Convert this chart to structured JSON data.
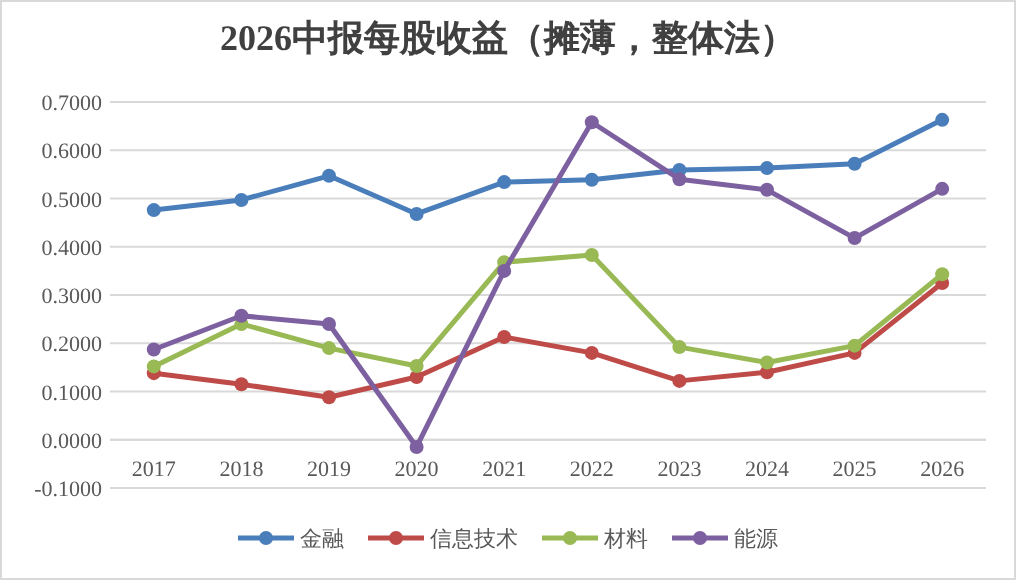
{
  "chart_data": {
    "type": "line",
    "title": "2026中报每股收益（摊薄，整体法）",
    "categories": [
      "2017",
      "2018",
      "2019",
      "2020",
      "2021",
      "2022",
      "2023",
      "2024",
      "2025",
      "2026"
    ],
    "series": [
      {
        "name": "金融",
        "color": "#4a7ebb",
        "values": [
          0.476,
          0.497,
          0.547,
          0.468,
          0.534,
          0.539,
          0.559,
          0.563,
          0.572,
          0.663
        ]
      },
      {
        "name": "信息技术",
        "color": "#be4b48",
        "values": [
          0.138,
          0.115,
          0.088,
          0.13,
          0.213,
          0.18,
          0.122,
          0.14,
          0.18,
          0.325
        ]
      },
      {
        "name": "材料",
        "color": "#98b954",
        "values": [
          0.152,
          0.24,
          0.19,
          0.153,
          0.368,
          0.383,
          0.192,
          0.16,
          0.195,
          0.343
        ]
      },
      {
        "name": "能源",
        "color": "#7d60a0",
        "values": [
          0.187,
          0.257,
          0.24,
          -0.015,
          0.35,
          0.658,
          0.54,
          0.518,
          0.418,
          0.52
        ]
      }
    ],
    "ylim": [
      -0.1,
      0.7
    ],
    "yticks": [
      {
        "value": -0.1,
        "label": "-0.1000"
      },
      {
        "value": 0,
        "label": "0.0000"
      },
      {
        "value": 0.1,
        "label": "0.1000"
      },
      {
        "value": 0.2,
        "label": "0.2000"
      },
      {
        "value": 0.3,
        "label": "0.3000"
      },
      {
        "value": 0.4,
        "label": "0.4000"
      },
      {
        "value": 0.5,
        "label": "0.5000"
      },
      {
        "value": 0.6,
        "label": "0.6000"
      },
      {
        "value": 0.7,
        "label": "0.7000"
      }
    ],
    "grid": "y",
    "legend": "bottom",
    "marker": "circle",
    "line_style": "solid"
  }
}
